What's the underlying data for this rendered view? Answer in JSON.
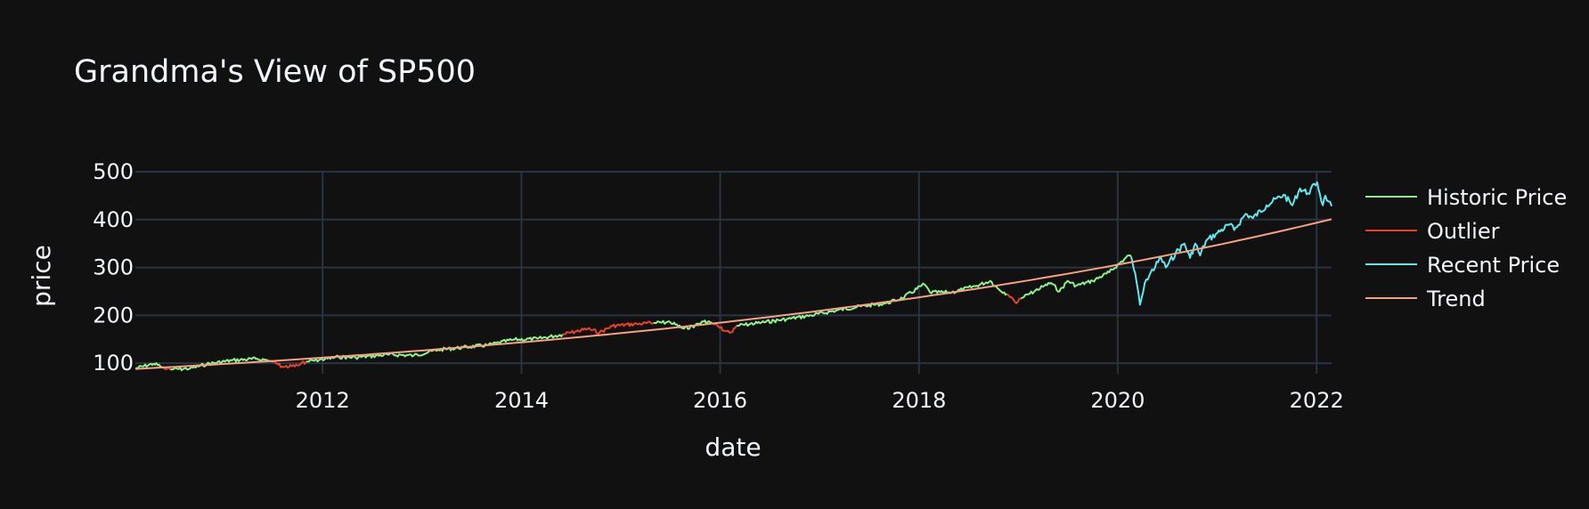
{
  "chart_data": {
    "type": "line",
    "title": "Grandma's View of SP500",
    "xlabel": "date",
    "ylabel": "price",
    "xlim": [
      "2010-02-12",
      "2022-02-25"
    ],
    "ylim": [
      78,
      500
    ],
    "x_ticks": [
      {
        "date": "2012-01-01",
        "label": "2012"
      },
      {
        "date": "2014-01-01",
        "label": "2014"
      },
      {
        "date": "2016-01-01",
        "label": "2016"
      },
      {
        "date": "2018-01-01",
        "label": "2018"
      },
      {
        "date": "2020-01-01",
        "label": "2020"
      },
      {
        "date": "2022-01-01",
        "label": "2022"
      }
    ],
    "y_ticks": [
      100,
      200,
      300,
      400,
      500
    ],
    "grid": true,
    "legend_position": "right",
    "series": [
      {
        "name": "Historic Price",
        "color": "#8cf28c",
        "segments": [
          [
            [
              "2010-02-12",
              89
            ],
            [
              "2010-04-20",
              99
            ],
            [
              "2010-05-20",
              93
            ]
          ],
          [
            [
              "2010-06-20",
              87
            ],
            [
              "2010-09-01",
              89
            ],
            [
              "2010-11-01",
              98
            ],
            [
              "2011-02-01",
              106
            ],
            [
              "2011-05-01",
              109
            ],
            [
              "2011-06-20",
              106
            ]
          ],
          [
            [
              "2011-11-01",
              103
            ],
            [
              "2012-03-01",
              113
            ],
            [
              "2012-05-01",
              112
            ],
            [
              "2012-09-01",
              118
            ],
            [
              "2012-12-01",
              116
            ],
            [
              "2013-03-01",
              128
            ],
            [
              "2013-06-01",
              133
            ],
            [
              "2013-09-01",
              138
            ],
            [
              "2013-12-01",
              149
            ],
            [
              "2014-03-01",
              151
            ],
            [
              "2014-06-01",
              160
            ]
          ],
          [
            [
              "2015-05-01",
              184
            ],
            [
              "2015-07-01",
              186
            ],
            [
              "2015-08-20",
              172
            ],
            [
              "2015-10-01",
              179
            ],
            [
              "2015-11-01",
              187
            ],
            [
              "2015-12-01",
              185
            ]
          ],
          [
            [
              "2016-03-01",
              178
            ],
            [
              "2016-06-01",
              185
            ],
            [
              "2016-09-01",
              192
            ],
            [
              "2016-12-01",
              200
            ],
            [
              "2017-03-01",
              210
            ],
            [
              "2017-06-01",
              219
            ],
            [
              "2017-09-01",
              225
            ],
            [
              "2017-11-01",
              236
            ],
            [
              "2018-01-20",
              265
            ],
            [
              "2018-02-10",
              248
            ],
            [
              "2018-05-01",
              248
            ],
            [
              "2018-08-01",
              262
            ],
            [
              "2018-09-20",
              272
            ],
            [
              "2018-10-20",
              255
            ],
            [
              "2018-11-20",
              245
            ]
          ],
          [
            [
              "2019-01-10",
              235
            ],
            [
              "2019-04-01",
              260
            ],
            [
              "2019-05-01",
              268
            ],
            [
              "2019-06-01",
              250
            ],
            [
              "2019-07-01",
              272
            ],
            [
              "2019-08-01",
              262
            ],
            [
              "2019-10-01",
              272
            ],
            [
              "2019-12-01",
              290
            ],
            [
              "2020-02-10",
              325
            ],
            [
              "2020-02-20",
              322
            ]
          ]
        ]
      },
      {
        "name": "Outlier",
        "color": "#e8432a",
        "segments": [
          [
            [
              "2010-05-20",
              93
            ],
            [
              "2010-06-01",
              88
            ],
            [
              "2010-06-20",
              87
            ]
          ],
          [
            [
              "2011-06-20",
              106
            ],
            [
              "2011-08-10",
              92
            ],
            [
              "2011-10-01",
              95
            ],
            [
              "2011-11-01",
              103
            ]
          ],
          [
            [
              "2014-06-01",
              160
            ],
            [
              "2014-09-01",
              172
            ],
            [
              "2014-10-15",
              164
            ],
            [
              "2014-12-01",
              178
            ],
            [
              "2015-03-01",
              182
            ],
            [
              "2015-05-01",
              184
            ]
          ],
          [
            [
              "2015-12-01",
              185
            ],
            [
              "2016-01-20",
              167
            ],
            [
              "2016-02-15",
              165
            ],
            [
              "2016-03-01",
              178
            ]
          ],
          [
            [
              "2018-11-20",
              245
            ],
            [
              "2018-12-24",
              225
            ],
            [
              "2019-01-10",
              235
            ]
          ]
        ]
      },
      {
        "name": "Recent Price",
        "color": "#62e8ec",
        "segments": [
          [
            [
              "2020-02-20",
              322
            ],
            [
              "2020-03-10",
              270
            ],
            [
              "2020-03-23",
              222
            ],
            [
              "2020-04-15",
              275
            ],
            [
              "2020-06-08",
              320
            ],
            [
              "2020-06-26",
              300
            ],
            [
              "2020-08-01",
              330
            ],
            [
              "2020-09-02",
              350
            ],
            [
              "2020-09-23",
              320
            ],
            [
              "2020-10-12",
              350
            ],
            [
              "2020-10-30",
              325
            ],
            [
              "2020-11-20",
              355
            ],
            [
              "2021-01-01",
              372
            ],
            [
              "2021-02-15",
              390
            ],
            [
              "2021-03-04",
              378
            ],
            [
              "2021-04-15",
              412
            ],
            [
              "2021-05-12",
              403
            ],
            [
              "2021-07-01",
              430
            ],
            [
              "2021-09-02",
              452
            ],
            [
              "2021-10-04",
              430
            ],
            [
              "2021-11-01",
              465
            ],
            [
              "2021-11-30",
              455
            ],
            [
              "2022-01-03",
              478
            ],
            [
              "2022-01-24",
              430
            ],
            [
              "2022-02-02",
              450
            ],
            [
              "2022-02-14",
              438
            ],
            [
              "2022-02-25",
              428
            ]
          ]
        ]
      },
      {
        "name": "Trend",
        "color": "#f7a183",
        "trend": {
          "start_date": "2010-02-12",
          "start_value": 88,
          "end_date": "2022-02-25",
          "end_value": 401
        }
      }
    ]
  }
}
